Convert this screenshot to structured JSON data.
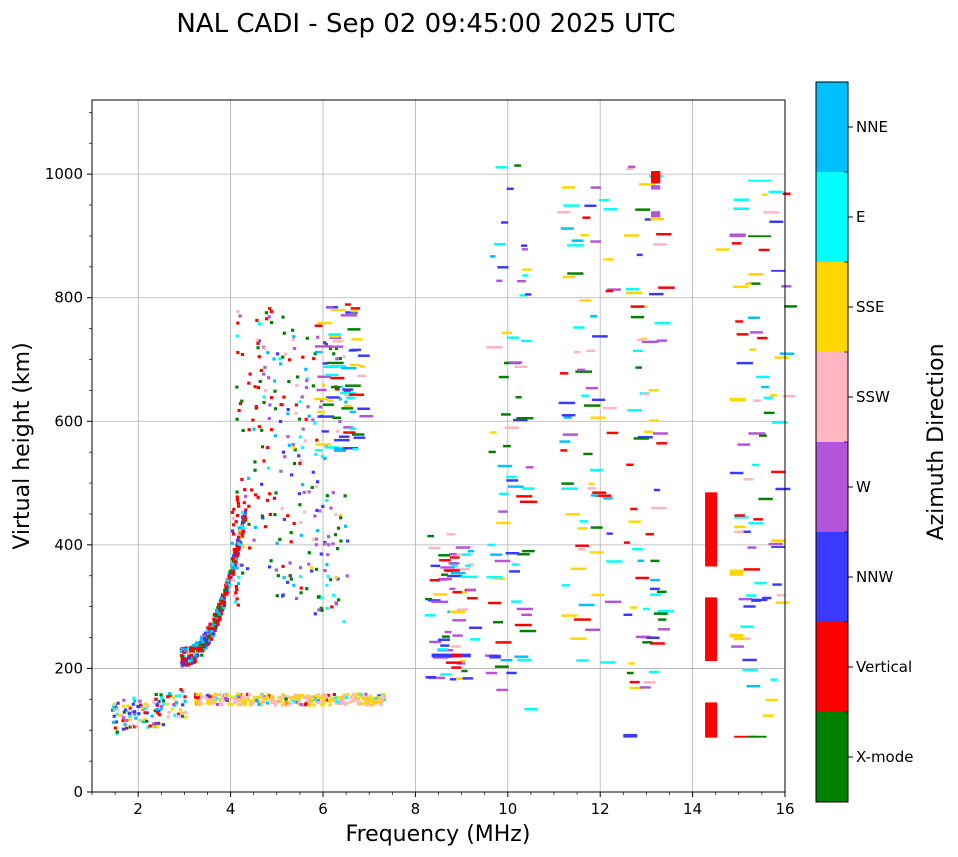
{
  "chart_data": {
    "type": "scatter",
    "title": "NAL CADI - Sep 02 09:45:00 2025 UTC",
    "xlabel": "Frequency (MHz)",
    "ylabel": "Virtual height (km)",
    "xlim": [
      1,
      16
    ],
    "ylim": [
      0,
      1120
    ],
    "xticks": [
      "2",
      "4",
      "6",
      "8",
      "10",
      "12",
      "14",
      "16"
    ],
    "yticks": [
      "0",
      "200",
      "400",
      "600",
      "800",
      "1000"
    ],
    "grid": true,
    "colorbar": {
      "title": "Azimuth Direction",
      "categories": [
        {
          "name": "X-mode",
          "color": "#008000"
        },
        {
          "name": "Vertical",
          "color": "#ff0000"
        },
        {
          "name": "NNW",
          "color": "#3a3aff"
        },
        {
          "name": "W",
          "color": "#b455d8"
        },
        {
          "name": "SSW",
          "color": "#ffb6c1"
        },
        {
          "name": "SSE",
          "color": "#ffd700"
        },
        {
          "name": "E",
          "color": "#00ffff"
        },
        {
          "name": "NNE",
          "color": "#00bfff"
        }
      ]
    },
    "segments": [
      {
        "f0": 14.27,
        "f1": 14.53,
        "h0": 365,
        "h1": 485,
        "dir": "Vertical"
      },
      {
        "f0": 14.27,
        "f1": 14.53,
        "h0": 212,
        "h1": 315,
        "dir": "Vertical"
      },
      {
        "f0": 14.27,
        "f1": 14.53,
        "h0": 88,
        "h1": 145,
        "dir": "Vertical"
      },
      {
        "f0": 8.35,
        "f1": 9.2,
        "h0": 218,
        "h1": 224,
        "dir": "NNW"
      },
      {
        "f0": 8.8,
        "f1": 9.0,
        "h0": 218,
        "h1": 224,
        "dir": "Vertical"
      },
      {
        "f0": 9.6,
        "f1": 9.85,
        "h0": 216,
        "h1": 222,
        "dir": "NNW"
      },
      {
        "f0": 12.5,
        "f1": 12.8,
        "h0": 88,
        "h1": 94,
        "dir": "NNW"
      },
      {
        "f0": 13.1,
        "f1": 13.3,
        "h0": 985,
        "h1": 1005,
        "dir": "Vertical"
      },
      {
        "f0": 13.1,
        "f1": 13.3,
        "h0": 930,
        "h1": 940,
        "dir": "W"
      },
      {
        "f0": 13.1,
        "f1": 13.3,
        "h0": 975,
        "h1": 982,
        "dir": "W"
      },
      {
        "f0": 14.8,
        "f1": 15.15,
        "h0": 898,
        "h1": 904,
        "dir": "W"
      },
      {
        "f0": 14.8,
        "f1": 15.1,
        "h0": 350,
        "h1": 360,
        "dir": "SSE"
      },
      {
        "f0": 14.8,
        "f1": 15.1,
        "h0": 250,
        "h1": 256,
        "dir": "SSE"
      },
      {
        "f0": 14.8,
        "f1": 15.15,
        "h0": 632,
        "h1": 638,
        "dir": "SSE"
      },
      {
        "f0": 15.2,
        "f1": 15.7,
        "h0": 898,
        "h1": 901,
        "dir": "X-mode"
      },
      {
        "f0": 15.2,
        "f1": 15.7,
        "h0": 988,
        "h1": 991,
        "dir": "E"
      },
      {
        "f0": 15.7,
        "f1": 16.0,
        "h0": 516,
        "h1": 520,
        "dir": "Vertical"
      },
      {
        "f0": 15.7,
        "f1": 16.0,
        "h0": 842,
        "h1": 845,
        "dir": "NNW"
      },
      {
        "f0": 15.7,
        "f1": 16.0,
        "h0": 395,
        "h1": 398,
        "dir": "NNW"
      },
      {
        "f0": 15.7,
        "f1": 16.0,
        "h0": 404,
        "h1": 409,
        "dir": "SSE"
      },
      {
        "f0": 14.9,
        "f1": 15.4,
        "h0": 88,
        "h1": 91,
        "dir": "Vertical"
      },
      {
        "f0": 15.2,
        "f1": 15.6,
        "h0": 88,
        "h1": 91,
        "dir": "X-mode"
      },
      {
        "f0": 14.5,
        "f1": 14.8,
        "h0": 876,
        "h1": 880,
        "dir": "SSE"
      }
    ],
    "scatter_seed": 7,
    "scatter_note": "Dense echo traces: O-mode trace 2.9-4.3 MHz rising 220-470 km, diffuse returns 4-6.5 MHz at 350-900 km, sporadic E layer 3.2-7.3 MHz near 145 km, low echoes 1.4-3 MHz near 90-140 km, scattered returns 8-16 MHz."
  }
}
